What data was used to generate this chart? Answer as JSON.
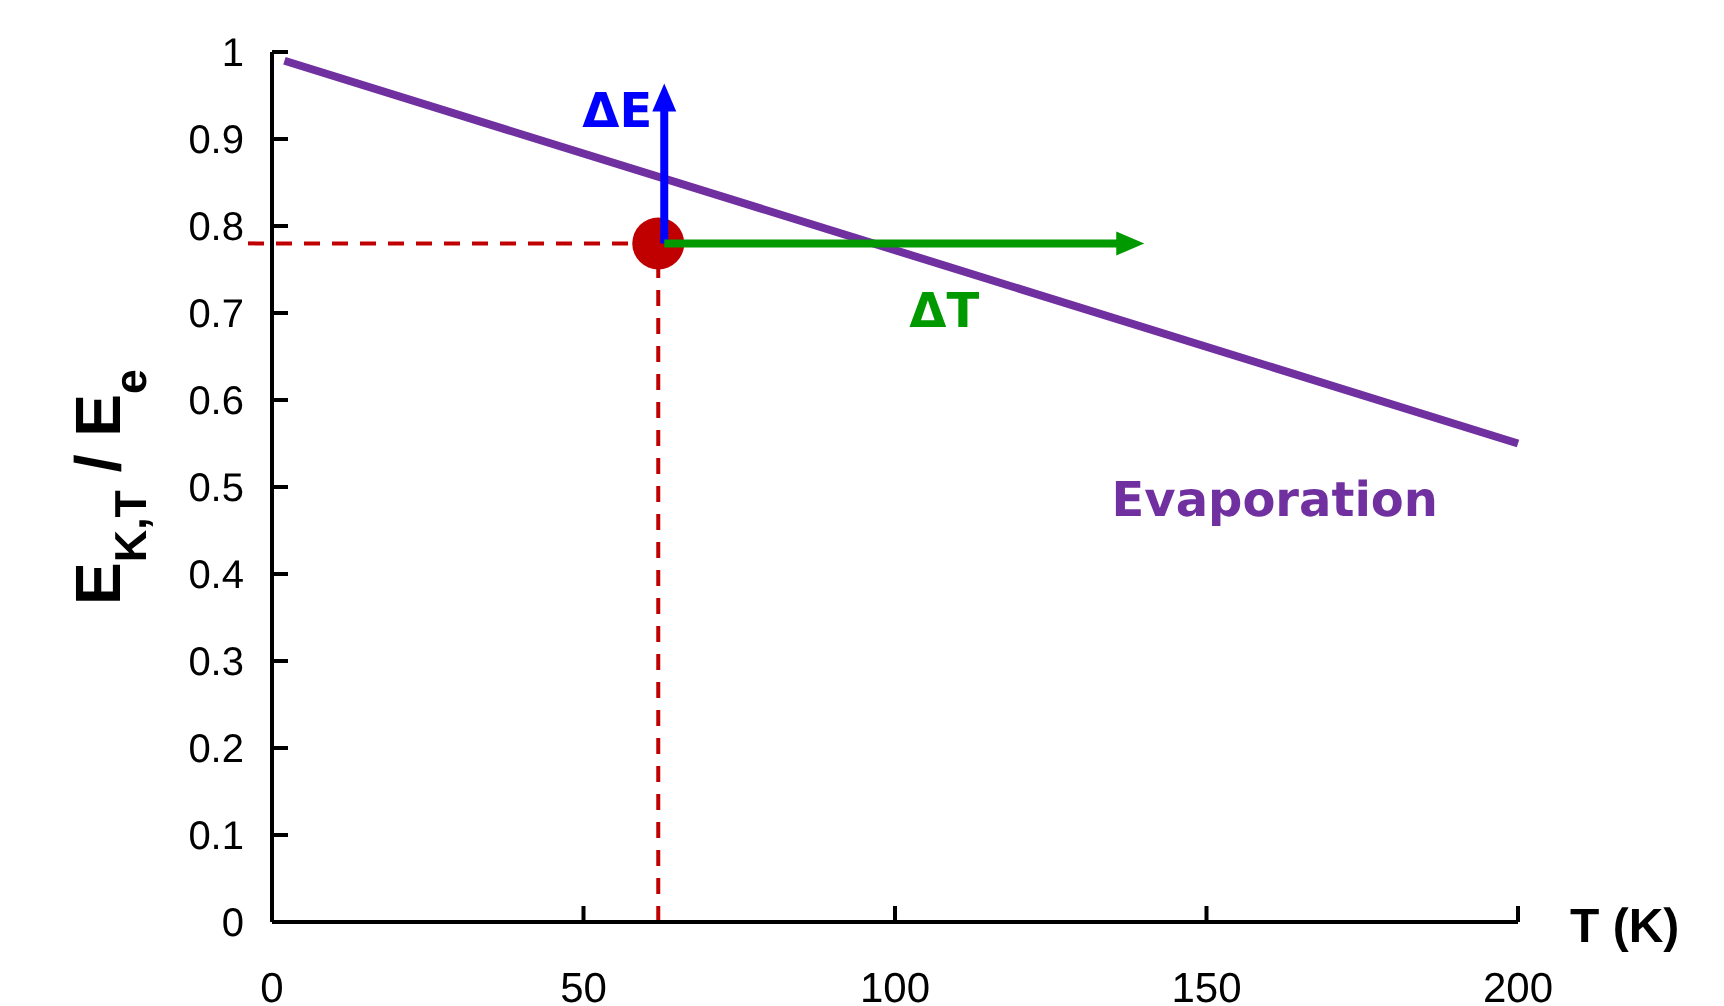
{
  "chart_data": {
    "type": "line",
    "xlabel": "T (K)",
    "ylabel": "E$_{K,T}$ / E$_{e}$",
    "xlim": [
      0,
      200
    ],
    "ylim": [
      0,
      1
    ],
    "xticks": [
      0,
      50,
      100,
      150,
      200
    ],
    "yticks": [
      0,
      {
        "value": 0.1,
        "label": "0.1"
      },
      {
        "value": 0.2,
        "label": "0.2"
      },
      {
        "value": 0.3,
        "label": "0.3"
      },
      {
        "value": 0.4,
        "label": "0.4"
      },
      {
        "value": 0.5,
        "label": "0.5"
      },
      {
        "value": 0.6,
        "label": "0.6"
      },
      {
        "value": 0.7,
        "label": "0.7"
      },
      {
        "value": 0.8,
        "label": "0.8"
      },
      {
        "value": 0.9,
        "label": "0.9"
      },
      1
    ],
    "series": [
      {
        "name": "Evaporation",
        "color": "#7030a0",
        "x": [
          2,
          200
        ],
        "values": [
          0.99,
          0.55
        ]
      },
      {
        "type": "scatter",
        "color": "#c00000",
        "x": [
          62
        ],
        "values": [
          0.78
        ],
        "marker": "circle"
      }
    ],
    "ref_lines": [
      {
        "axis": "x",
        "value": 62,
        "color": "#c00000",
        "line_style": "dashed"
      },
      {
        "axis": "y",
        "value": 0.78,
        "color": "#c00000",
        "line_style": "dashed"
      }
    ],
    "annotations": [
      {
        "text": "ΔE",
        "x": 62,
        "y": 0.78
      },
      "ΔT"
    ],
    "grid": false,
    "legend": false
  }
}
